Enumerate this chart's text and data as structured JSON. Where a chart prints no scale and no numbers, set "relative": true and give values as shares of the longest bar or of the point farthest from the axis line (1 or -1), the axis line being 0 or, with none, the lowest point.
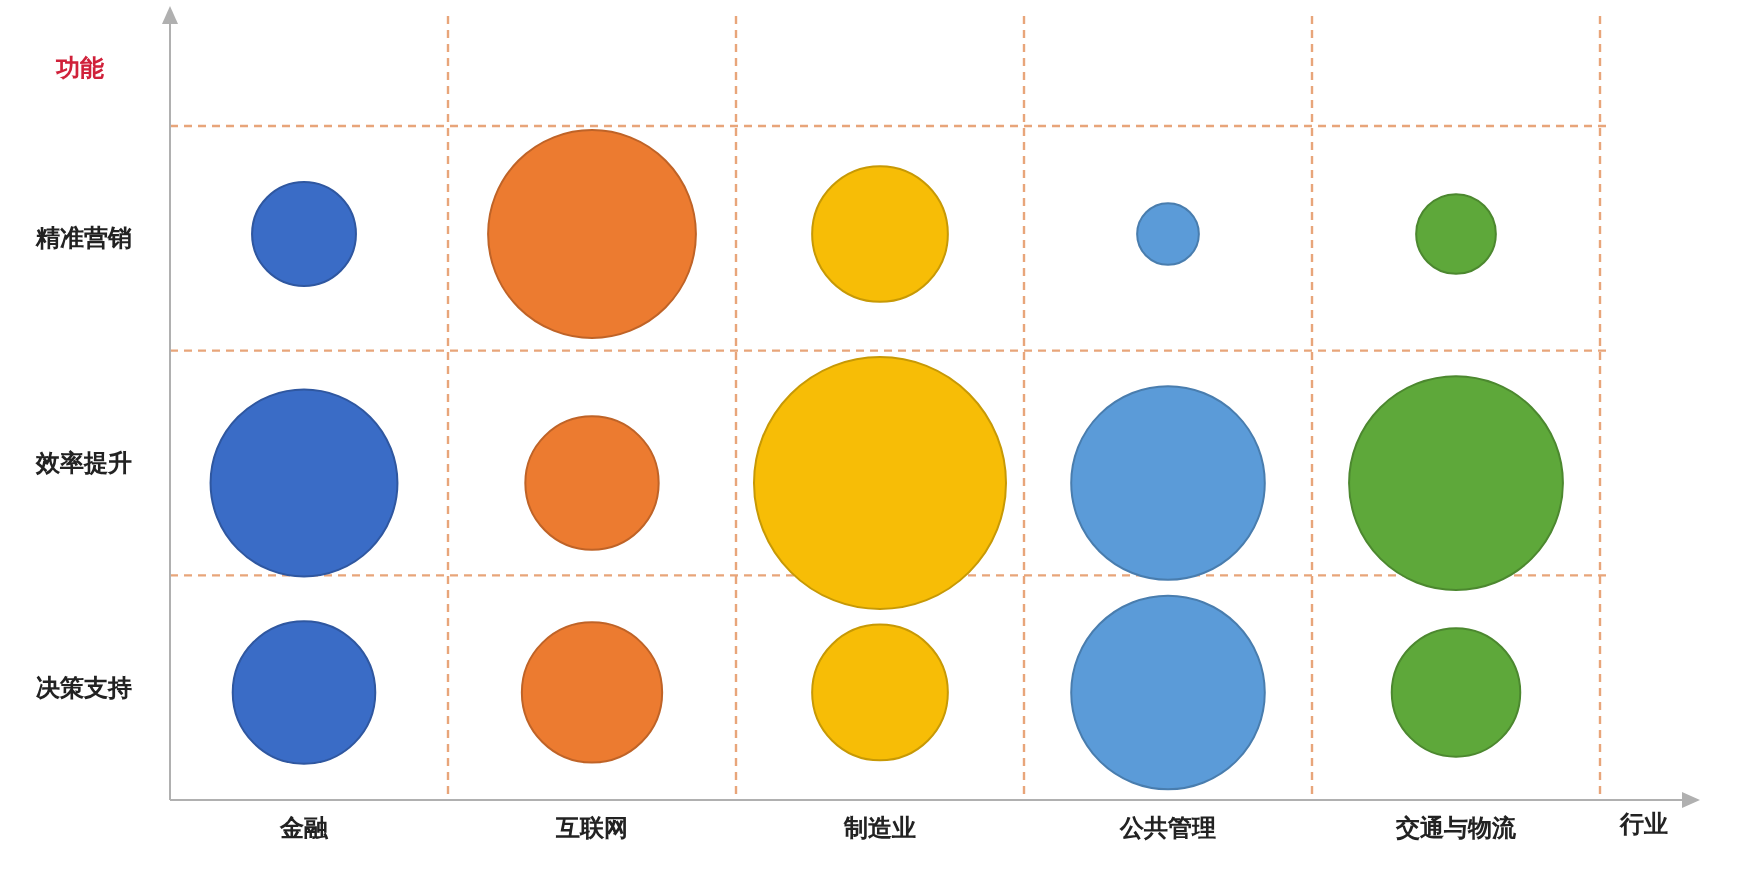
{
  "chart_data": {
    "type": "bubble",
    "relative": true,
    "xlabel": "行业",
    "annotations": [
      "功能"
    ],
    "categories": [
      "金融",
      "互联网",
      "制造业",
      "公共管理",
      "交通与物流"
    ],
    "y_categories": [
      "精准营销",
      "效率提升",
      "决策支持"
    ],
    "grid": true,
    "series": [
      {
        "color": "#3a6cc6",
        "x": [
          "金融",
          "金融",
          "金融"
        ],
        "values": [
          1,
          0.56,
          0.19
        ],
        "sizes": [
          0.17,
          0.55,
          0.32
        ]
      },
      {
        "color": "#ec7b30",
        "x": [
          "互联网",
          "互联网",
          "互联网"
        ],
        "values": [
          1,
          0.56,
          0.19
        ],
        "sizes": [
          0.68,
          0.28,
          0.31
        ]
      },
      {
        "color": "#f7bd06",
        "x": [
          "制造业",
          "制造业",
          "制造业"
        ],
        "values": [
          1,
          0.56,
          0.19
        ],
        "sizes": [
          0.29,
          1,
          0.29
        ]
      },
      {
        "color": "#5b9bd8",
        "x": [
          "公共管理",
          "公共管理",
          "公共管理"
        ],
        "values": [
          1,
          0.56,
          0.19
        ],
        "sizes": [
          0.06,
          0.59,
          0.59
        ]
      },
      {
        "color": "#5ea83a",
        "x": [
          "交通与物流",
          "交通与物流",
          "交通与物流"
        ],
        "values": [
          1,
          0.56,
          0.19
        ],
        "sizes": [
          0.1,
          0.72,
          0.26
        ]
      }
    ]
  }
}
